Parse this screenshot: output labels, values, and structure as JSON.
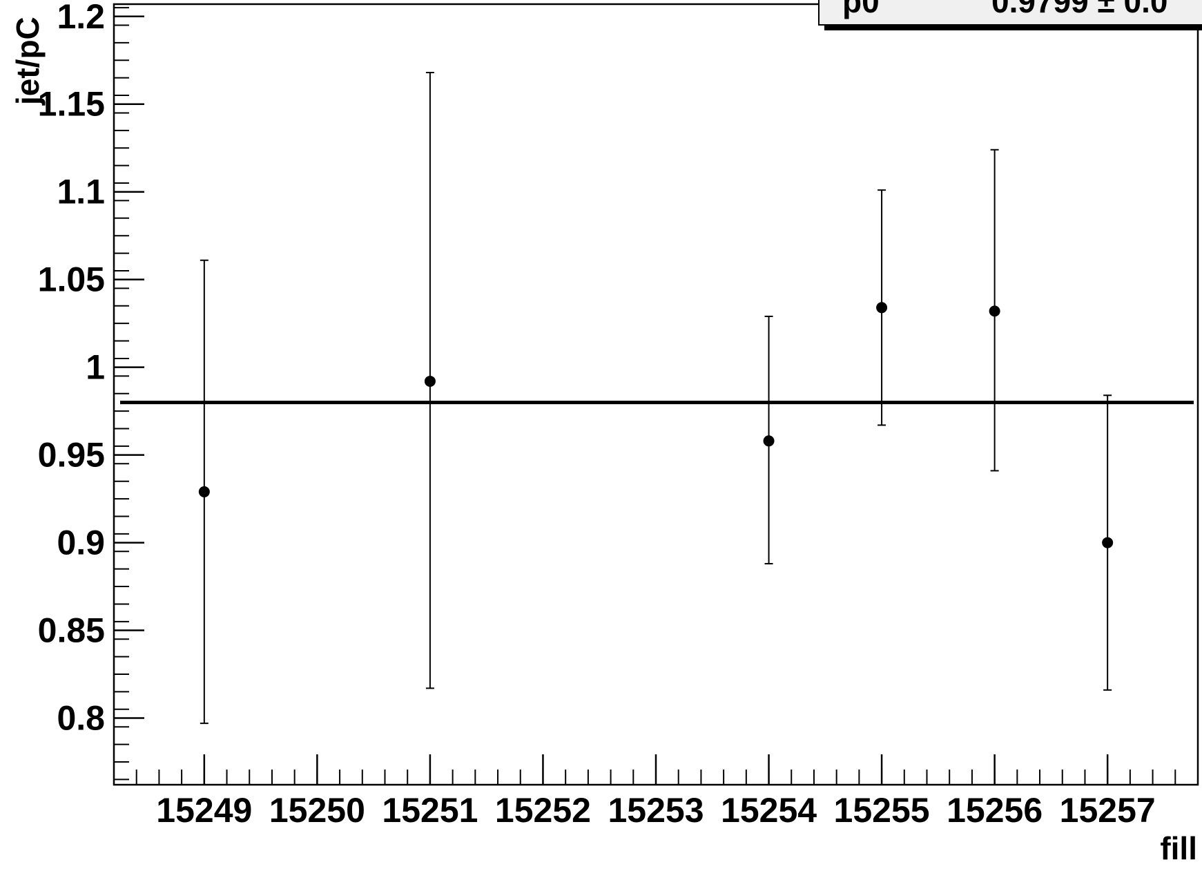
{
  "chart_data": {
    "type": "scatter",
    "xlabel": "fill",
    "ylabel": "jet/pC",
    "xlim": [
      15248.2,
      15257.8
    ],
    "ylim": [
      0.762,
      1.207
    ],
    "x_ticks": [
      "15249",
      "15250",
      "15251",
      "15252",
      "15253",
      "15254",
      "15255",
      "15256",
      "15257"
    ],
    "y_ticks": [
      "0.8",
      "0.85",
      "0.9",
      "0.95",
      "1",
      "1.05",
      "1.1",
      "1.15",
      "1.2"
    ],
    "series": [
      {
        "points": [
          {
            "x": 15249,
            "y": 0.929,
            "err_low": 0.797,
            "err_high": 1.061
          },
          {
            "x": 15251,
            "y": 0.992,
            "err_low": 0.817,
            "err_high": 1.168
          },
          {
            "x": 15254,
            "y": 0.958,
            "err_low": 0.888,
            "err_high": 1.029
          },
          {
            "x": 15255,
            "y": 1.034,
            "err_low": 0.967,
            "err_high": 1.101
          },
          {
            "x": 15256,
            "y": 1.032,
            "err_low": 0.941,
            "err_high": 1.124
          },
          {
            "x": 15257,
            "y": 0.9,
            "err_low": 0.816,
            "err_high": 0.984
          }
        ]
      }
    ],
    "fit": {
      "type": "constant",
      "value": 0.9799
    },
    "stats_box": {
      "param_label": "p0",
      "param_value": "0.9799 ± 0.0"
    },
    "grid": false,
    "colors": {
      "markers": "#000000",
      "fit_line": "#000000",
      "background": "#ffffff",
      "stats_box": "#f0f0f0"
    }
  }
}
